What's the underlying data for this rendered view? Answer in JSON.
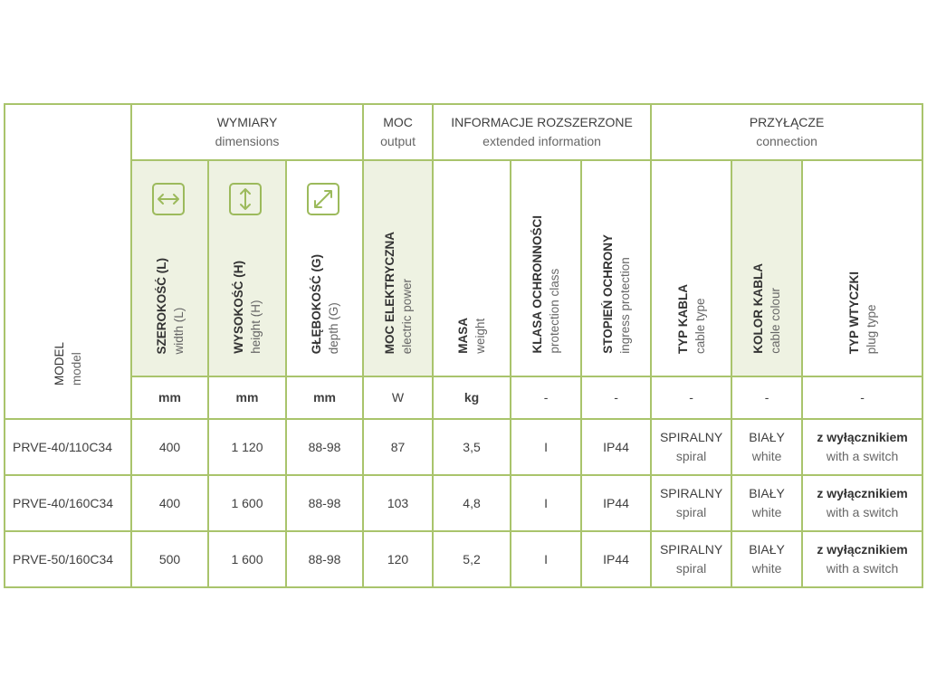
{
  "colors": {
    "border": "#a9c46c",
    "shade": "#eef2e2",
    "icon": "#9cba5c"
  },
  "groups": {
    "wymiary": {
      "pl": "WYMIARY",
      "en": "dimensions"
    },
    "moc": {
      "pl": "MOC",
      "en": "output"
    },
    "info": {
      "pl": "INFORMACJE ROZSZERZONE",
      "en": "extended information"
    },
    "przylacze": {
      "pl": "PRZYŁĄCZE",
      "en": "connection"
    }
  },
  "model_header": {
    "pl": "MODEL",
    "en": "model"
  },
  "columns": [
    {
      "pl": "SZEROKOŚĆ (L)",
      "en": "width (L)",
      "unit": "mm",
      "icon": "horizontal-arrow-icon"
    },
    {
      "pl": "WYSOKOŚĆ (H)",
      "en": "height (H)",
      "unit": "mm",
      "icon": "vertical-arrow-icon"
    },
    {
      "pl": "GŁĘBOKOŚĆ (G)",
      "en": "depth (G)",
      "unit": "mm",
      "icon": "diagonal-arrow-icon"
    },
    {
      "pl": "MOC ELEKTRYCZNA",
      "en": "electric power",
      "unit": "W"
    },
    {
      "pl": "MASA",
      "en": "weight",
      "unit": "kg"
    },
    {
      "pl": "KLASA OCHRONNOŚCI",
      "en": "protection class",
      "unit": "-"
    },
    {
      "pl": "STOPIEŃ OCHRONY",
      "en": "ingress protection",
      "unit": "-"
    },
    {
      "pl": "TYP KABLA",
      "en": "cable type",
      "unit": "-"
    },
    {
      "pl": "KOLOR KABLA",
      "en": "cable colour",
      "unit": "-"
    },
    {
      "pl": "TYP WTYCZKI",
      "en": "plug type",
      "unit": "-"
    }
  ],
  "rows": [
    {
      "model": "PRVE-40/110C34",
      "width": "400",
      "height": "1 120",
      "depth": "88-98",
      "power": "87",
      "weight": "3,5",
      "class": "I",
      "ip": "IP44",
      "cable_pl": "SPIRALNY",
      "cable_en": "spiral",
      "colour_pl": "BIAŁY",
      "colour_en": "white",
      "plug_pl": "z wyłącznikiem",
      "plug_en": "with a switch"
    },
    {
      "model": "PRVE-40/160C34",
      "width": "400",
      "height": "1 600",
      "depth": "88-98",
      "power": "103",
      "weight": "4,8",
      "class": "I",
      "ip": "IP44",
      "cable_pl": "SPIRALNY",
      "cable_en": "spiral",
      "colour_pl": "BIAŁY",
      "colour_en": "white",
      "plug_pl": "z wyłącznikiem",
      "plug_en": "with a switch"
    },
    {
      "model": "PRVE-50/160C34",
      "width": "500",
      "height": "1 600",
      "depth": "88-98",
      "power": "120",
      "weight": "5,2",
      "class": "I",
      "ip": "IP44",
      "cable_pl": "SPIRALNY",
      "cable_en": "spiral",
      "colour_pl": "BIAŁY",
      "colour_en": "white",
      "plug_pl": "z wyłącznikiem",
      "plug_en": "with a switch"
    }
  ]
}
